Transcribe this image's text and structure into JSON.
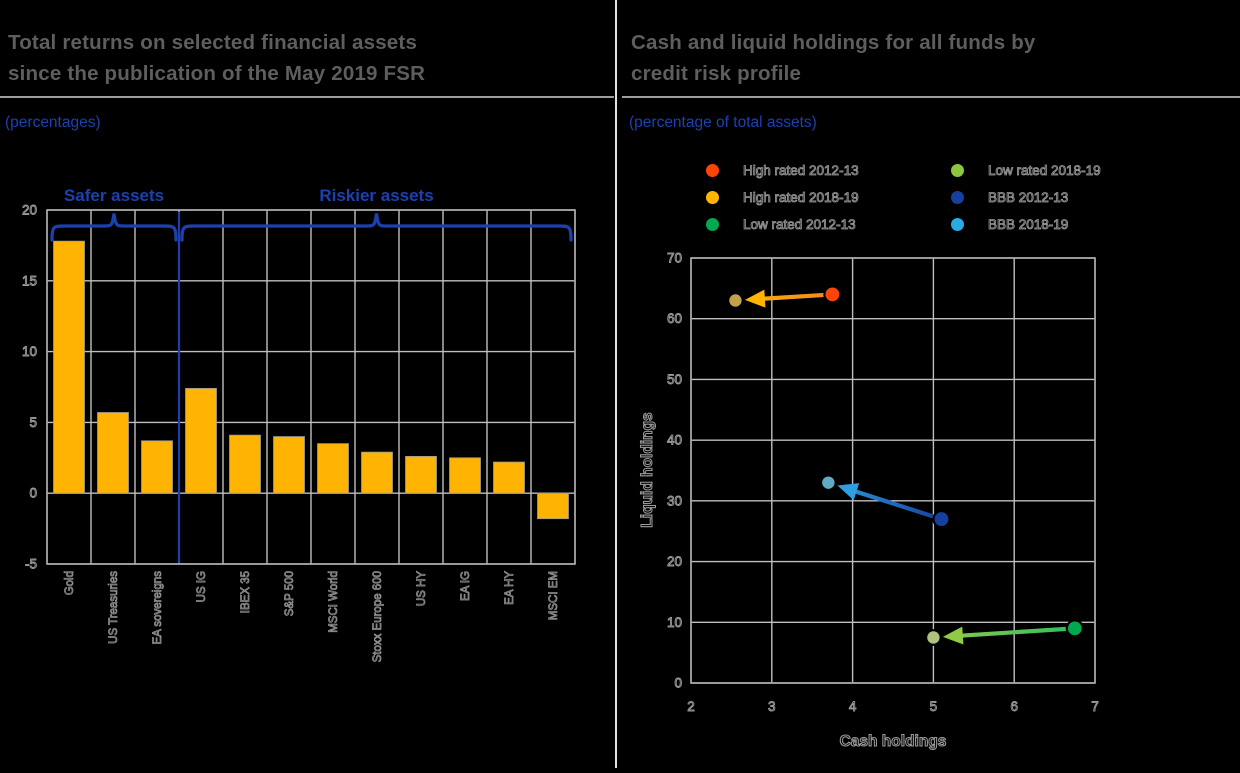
{
  "colors": {
    "background": "#000000",
    "title_gray": "#5E5E5E",
    "accent_blue": "#1C41AE",
    "grid_gray": "#BFBFBF",
    "spine_gray": "#A8A8A8",
    "hollow_text_gray": "#9A9A9A",
    "bar_amber": "#FFB404"
  },
  "left_panel": {
    "title_line1": "Total returns on selected financial assets",
    "title_line2": "since the publication of the May 2019 FSR",
    "subtitle": "(percentages)",
    "group_label_safer": "Safer assets",
    "group_label_riskier": "Riskier assets"
  },
  "right_panel": {
    "title_line1": "Cash and liquid holdings for all funds by",
    "title_line2": "credit risk profile",
    "subtitle": "(percentage of total assets)"
  },
  "chart_data": [
    {
      "id": "total-returns-bar",
      "type": "bar",
      "title": "Total returns on selected financial assets since the publication of the May 2019 FSR",
      "unit_label": "(percentages)",
      "categories": [
        "Gold",
        "US Treasuries",
        "EA sovereigns",
        "US IG",
        "IBEX 35",
        "S&P 500",
        "MSCI World",
        "Stoxx Europe 600",
        "US HY",
        "EA IG",
        "EA HY",
        "MSCI EM"
      ],
      "values": [
        17.8,
        5.7,
        3.7,
        7.4,
        4.1,
        4.0,
        3.5,
        2.9,
        2.6,
        2.5,
        2.2,
        -1.8
      ],
      "xlabel": "",
      "ylabel": "",
      "ylim": [
        -5,
        20
      ],
      "yticks": [
        20,
        15,
        10,
        5,
        0,
        -5
      ],
      "grid": true,
      "bar_color": "#FFB404",
      "groups": [
        {
          "label": "Safer assets",
          "from_index": 0,
          "to_index": 2
        },
        {
          "label": "Riskier assets",
          "from_index": 3,
          "to_index": 11
        }
      ]
    },
    {
      "id": "cash-liquid-scatter",
      "type": "scatter",
      "title": "Cash and liquid holdings for all funds by credit risk profile",
      "unit_label": "(percentage of total assets)",
      "xlabel": "Cash holdings",
      "ylabel": "Liquid holdings",
      "xlim": [
        2,
        7
      ],
      "ylim": [
        0,
        70
      ],
      "xticks": [
        2,
        3,
        4,
        5,
        6,
        7
      ],
      "yticks": [
        0,
        10,
        20,
        30,
        40,
        50,
        60,
        70
      ],
      "grid": true,
      "legend_position": "top",
      "legend": [
        {
          "label": "High rated 2012-13",
          "color": "#FF4408"
        },
        {
          "label": "High rated 2018-19",
          "color": "#FFB404"
        },
        {
          "label": "Low rated 2012-13",
          "color": "#00A84F"
        },
        {
          "label": "Low rated 2018-19",
          "color": "#8CC63F"
        },
        {
          "label": "BBB 2012-13",
          "color": "#16409E"
        },
        {
          "label": "BBB 2018-19",
          "color": "#29ABE2"
        }
      ],
      "series": [
        {
          "name": "High rated 2012-13",
          "x": 3.75,
          "y": 64,
          "dot_color": "#FF4408"
        },
        {
          "name": "High rated 2018-19",
          "x": 2.55,
          "y": 63,
          "dot_color": "#C2A14D"
        },
        {
          "name": "Low rated 2012-13",
          "x": 6.75,
          "y": 9,
          "dot_color": "#00A84F"
        },
        {
          "name": "Low rated 2018-19",
          "x": 5.0,
          "y": 7.5,
          "dot_color": "#ACC27E"
        },
        {
          "name": "BBB 2012-13",
          "x": 5.1,
          "y": 27,
          "dot_color": "#16409E"
        },
        {
          "name": "BBB 2018-19",
          "x": 3.7,
          "y": 33,
          "dot_color": "#62A9C6"
        }
      ],
      "arrows": [
        {
          "from_series": 0,
          "to_series": 1,
          "color_from": "#F08A1D",
          "color_to": "#FFB404"
        },
        {
          "from_series": 4,
          "to_series": 5,
          "color_from": "#16409E",
          "color_to": "#2D9FE0"
        },
        {
          "from_series": 2,
          "to_series": 3,
          "color_from": "#2FBF63",
          "color_to": "#8FCB46"
        }
      ]
    }
  ]
}
